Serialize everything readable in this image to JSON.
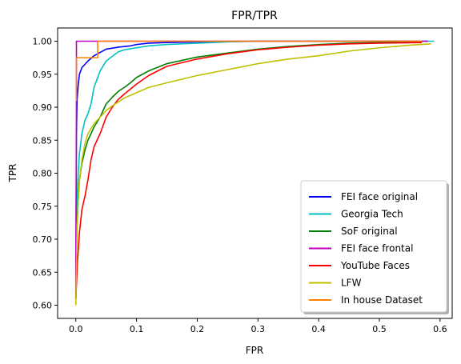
{
  "chart_data": {
    "type": "line",
    "title": "FPR/TPR",
    "xlabel": "FPR",
    "ylabel": "TPR",
    "xlim": [
      -0.03,
      0.62
    ],
    "ylim": [
      0.58,
      1.02
    ],
    "xticks": [
      0.0,
      0.1,
      0.2,
      0.3,
      0.4,
      0.5,
      0.6
    ],
    "xtick_labels": [
      "0.0",
      "0.1",
      "0.2",
      "0.3",
      "0.4",
      "0.5",
      "0.6"
    ],
    "yticks": [
      0.6,
      0.65,
      0.7,
      0.75,
      0.8,
      0.85,
      0.9,
      0.95,
      1.0
    ],
    "ytick_labels": [
      "0.60",
      "0.65",
      "0.70",
      "0.75",
      "0.80",
      "0.85",
      "0.90",
      "0.95",
      "1.00"
    ],
    "grid": false,
    "legend_position": "lower-right",
    "series": [
      {
        "name": "FEI face original",
        "color": "#0000ff",
        "x": [
          0,
          0.001,
          0.002,
          0.004,
          0.006,
          0.01,
          0.015,
          0.02,
          0.03,
          0.04,
          0.05,
          0.07,
          0.09,
          0.1,
          0.12,
          0.15,
          0.2,
          0.3,
          0.5,
          0.58
        ],
        "y": [
          0.61,
          0.86,
          0.91,
          0.935,
          0.95,
          0.96,
          0.965,
          0.97,
          0.978,
          0.983,
          0.988,
          0.991,
          0.993,
          0.995,
          0.997,
          0.998,
          0.999,
          1.0,
          1.0,
          1.0
        ]
      },
      {
        "name": "Georgia Tech",
        "color": "#00bfbf",
        "x": [
          0,
          0.001,
          0.002,
          0.004,
          0.006,
          0.01,
          0.015,
          0.02,
          0.025,
          0.03,
          0.04,
          0.05,
          0.06,
          0.07,
          0.08,
          0.1,
          0.12,
          0.15,
          0.2,
          0.25,
          0.3,
          0.5,
          0.59
        ],
        "y": [
          0.61,
          0.7,
          0.76,
          0.8,
          0.83,
          0.86,
          0.88,
          0.89,
          0.905,
          0.93,
          0.955,
          0.97,
          0.977,
          0.984,
          0.987,
          0.99,
          0.993,
          0.995,
          0.997,
          0.999,
          1.0,
          1.0,
          1.0
        ]
      },
      {
        "name": "SoF original",
        "color": "#008000",
        "x": [
          0,
          0.002,
          0.004,
          0.006,
          0.01,
          0.015,
          0.02,
          0.03,
          0.04,
          0.05,
          0.06,
          0.07,
          0.08,
          0.09,
          0.1,
          0.12,
          0.15,
          0.2,
          0.25,
          0.3,
          0.35,
          0.4,
          0.45,
          0.5,
          0.55,
          0.57
        ],
        "y": [
          0.61,
          0.72,
          0.76,
          0.79,
          0.815,
          0.835,
          0.85,
          0.87,
          0.885,
          0.905,
          0.915,
          0.924,
          0.93,
          0.937,
          0.945,
          0.955,
          0.966,
          0.976,
          0.982,
          0.988,
          0.992,
          0.995,
          0.997,
          0.998,
          0.999,
          1.0
        ]
      },
      {
        "name": "FEI face frontal",
        "color": "#bf00bf",
        "x": [
          0,
          0.001,
          0.001,
          0.58
        ],
        "y": [
          0.61,
          0.92,
          1.0,
          1.0
        ]
      },
      {
        "name": "YouTube Faces",
        "color": "#ff0000",
        "x": [
          0,
          0.003,
          0.006,
          0.01,
          0.015,
          0.02,
          0.025,
          0.03,
          0.04,
          0.05,
          0.06,
          0.07,
          0.08,
          0.1,
          0.12,
          0.15,
          0.2,
          0.25,
          0.3,
          0.35,
          0.4,
          0.45,
          0.5,
          0.57
        ],
        "y": [
          0.61,
          0.67,
          0.71,
          0.745,
          0.765,
          0.79,
          0.82,
          0.84,
          0.86,
          0.885,
          0.9,
          0.912,
          0.92,
          0.935,
          0.948,
          0.962,
          0.973,
          0.981,
          0.987,
          0.991,
          0.994,
          0.996,
          0.997,
          0.998
        ]
      },
      {
        "name": "LFW",
        "color": "#bfbf00",
        "x": [
          0,
          0.002,
          0.005,
          0.01,
          0.015,
          0.02,
          0.03,
          0.04,
          0.05,
          0.06,
          0.07,
          0.08,
          0.1,
          0.12,
          0.15,
          0.2,
          0.25,
          0.3,
          0.35,
          0.4,
          0.45,
          0.5,
          0.55,
          0.585
        ],
        "y": [
          0.6,
          0.72,
          0.78,
          0.82,
          0.845,
          0.86,
          0.875,
          0.885,
          0.895,
          0.902,
          0.908,
          0.914,
          0.922,
          0.93,
          0.937,
          0.948,
          0.957,
          0.966,
          0.973,
          0.978,
          0.985,
          0.99,
          0.994,
          0.996
        ]
      },
      {
        "name": "In house Dataset",
        "color": "#ff8000",
        "x": [
          0,
          0.001,
          0.001,
          0.036,
          0.036,
          0.57
        ],
        "y": [
          0.91,
          0.91,
          0.975,
          0.975,
          1.0,
          1.0
        ]
      }
    ]
  }
}
